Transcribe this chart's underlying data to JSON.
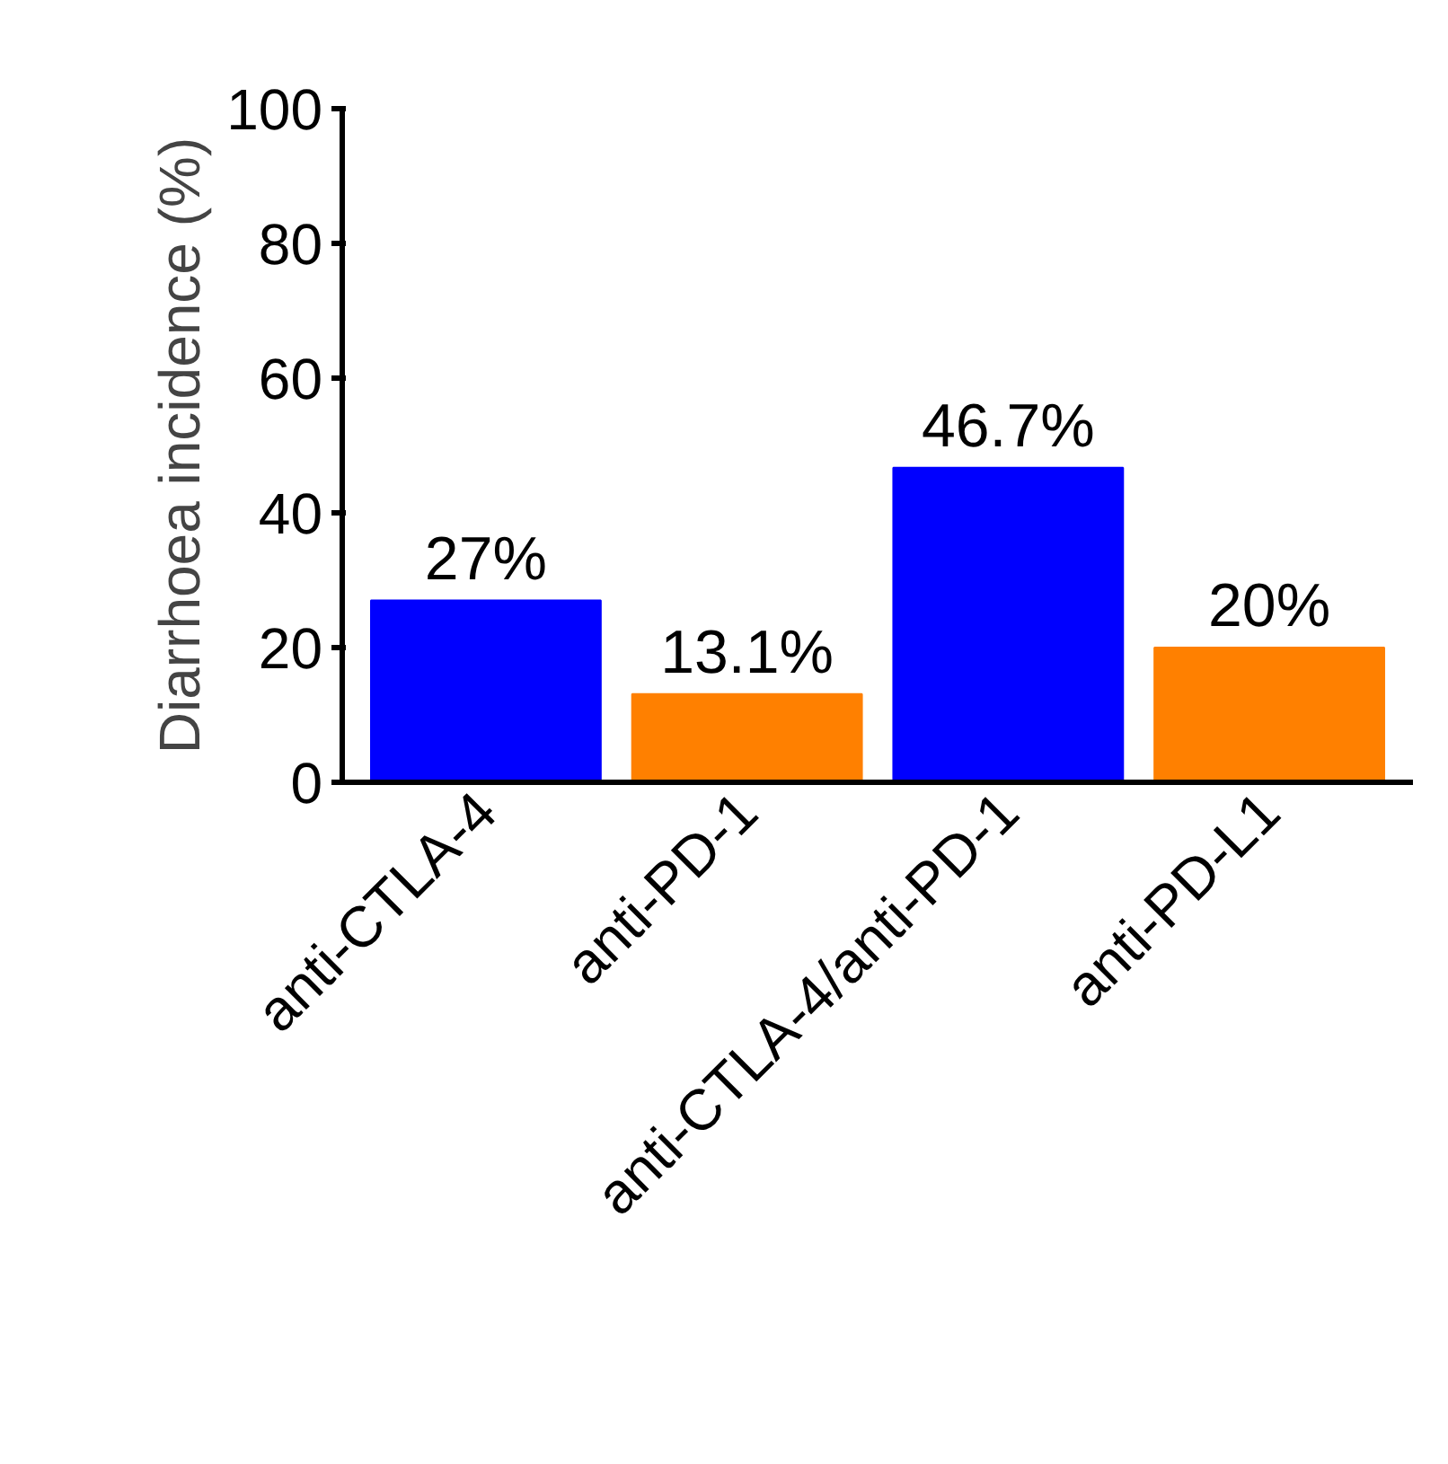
{
  "chart_data": {
    "type": "bar",
    "ylabel": "Diarrhoea incidence (%)",
    "categories": [
      "anti-CTLA-4",
      "anti-PD-1",
      "anti-CTLA-4/anti-PD-1",
      "anti-PD-L1"
    ],
    "values": [
      27,
      13.1,
      46.7,
      20
    ],
    "colors": [
      "#0000ff",
      "#ff8000",
      "#0000ff",
      "#ff8000"
    ],
    "value_labels": [
      "27%",
      "13.1%",
      "46.7%",
      "20%"
    ],
    "ylim": [
      0,
      100
    ],
    "yticks": [
      0,
      20,
      40,
      60,
      80,
      100
    ],
    "grid": false
  }
}
